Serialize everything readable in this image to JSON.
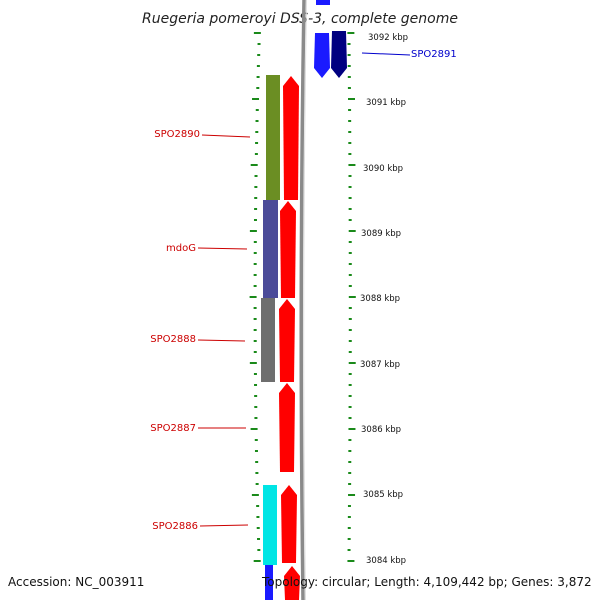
{
  "title": "Ruegeria pomeroyi DSS-3, complete genome",
  "accession": "Accession: NC_003911",
  "topology": "Topology: circular; Length: 4,109,442 bp; Genes: 3,872",
  "colors": {
    "forward_gene": "#ff0000",
    "reverse_gene_light": "#1a1aff",
    "reverse_gene_dark": "#000080",
    "forward_label": "#cc0000",
    "reverse_label": "#0000cc",
    "tick": "#1a8a1a",
    "backbone": "#888888"
  },
  "scale_labels": [
    "3092 kbp",
    "3091 kbp",
    "3090 kbp",
    "3089 kbp",
    "3088 kbp",
    "3087 kbp",
    "3086 kbp",
    "3085 kbp",
    "3084 kbp"
  ],
  "forward_labels": [
    "SPO2890",
    "mdoG",
    "SPO2888",
    "SPO2887",
    "SPO2886"
  ],
  "reverse_labels": [
    "SPO2891"
  ],
  "feature_colors": [
    "#6b8e23",
    "#4b4b99",
    "#6e6e6e",
    "#00e5e5"
  ]
}
